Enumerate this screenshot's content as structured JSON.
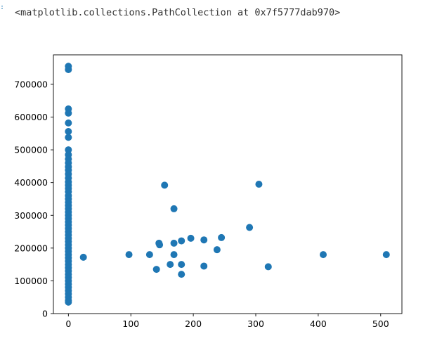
{
  "cell": {
    "output_repr": "<matplotlib.collections.PathCollection at 0x7f5777dab970>"
  },
  "colors": {
    "marker": "#1f77b4"
  },
  "chart_data": {
    "type": "scatter",
    "title": "",
    "xlabel": "",
    "ylabel": "",
    "xlim": [
      -24,
      534
    ],
    "ylim": [
      0,
      790000
    ],
    "xticks": [
      0,
      100,
      200,
      300,
      400,
      500
    ],
    "yticks": [
      0,
      100000,
      200000,
      300000,
      400000,
      500000,
      600000,
      700000
    ],
    "grid": false,
    "series": [
      {
        "points": [
          [
            0,
            755000
          ],
          [
            0,
            745000
          ],
          [
            0,
            625000
          ],
          [
            0,
            612000
          ],
          [
            0,
            582000
          ],
          [
            0,
            556000
          ],
          [
            0,
            538000
          ],
          [
            0,
            500000
          ],
          [
            0,
            485000
          ],
          [
            0,
            472000
          ],
          [
            0,
            460000
          ],
          [
            0,
            448000
          ],
          [
            0,
            438000
          ],
          [
            0,
            426000
          ],
          [
            0,
            414000
          ],
          [
            0,
            402000
          ],
          [
            0,
            392000
          ],
          [
            0,
            382000
          ],
          [
            0,
            372000
          ],
          [
            0,
            360000
          ],
          [
            0,
            350000
          ],
          [
            0,
            340000
          ],
          [
            0,
            330000
          ],
          [
            0,
            320000
          ],
          [
            0,
            310000
          ],
          [
            0,
            300000
          ],
          [
            0,
            290000
          ],
          [
            0,
            280000
          ],
          [
            0,
            270000
          ],
          [
            0,
            260000
          ],
          [
            0,
            250000
          ],
          [
            0,
            240000
          ],
          [
            0,
            230000
          ],
          [
            0,
            220000
          ],
          [
            0,
            210000
          ],
          [
            0,
            200000
          ],
          [
            0,
            190000
          ],
          [
            0,
            180000
          ],
          [
            0,
            170000
          ],
          [
            0,
            160000
          ],
          [
            0,
            150000
          ],
          [
            0,
            140000
          ],
          [
            0,
            130000
          ],
          [
            0,
            120000
          ],
          [
            0,
            110000
          ],
          [
            0,
            100000
          ],
          [
            0,
            90000
          ],
          [
            0,
            80000
          ],
          [
            0,
            70000
          ],
          [
            0,
            60000
          ],
          [
            0,
            50000
          ],
          [
            0,
            40000
          ],
          [
            0,
            35000
          ],
          [
            24,
            172000
          ],
          [
            97,
            180000
          ],
          [
            130,
            180000
          ],
          [
            141,
            135000
          ],
          [
            145,
            215000
          ],
          [
            146,
            210000
          ],
          [
            154,
            392000
          ],
          [
            163,
            150000
          ],
          [
            169,
            320000
          ],
          [
            169,
            215000
          ],
          [
            169,
            180000
          ],
          [
            181,
            222000
          ],
          [
            181,
            150000
          ],
          [
            181,
            120000
          ],
          [
            196,
            230000
          ],
          [
            217,
            225000
          ],
          [
            217,
            145000
          ],
          [
            238,
            195000
          ],
          [
            245,
            232000
          ],
          [
            290,
            263000
          ],
          [
            305,
            395000
          ],
          [
            320,
            143000
          ],
          [
            408,
            180000
          ],
          [
            509,
            180000
          ]
        ]
      }
    ]
  }
}
